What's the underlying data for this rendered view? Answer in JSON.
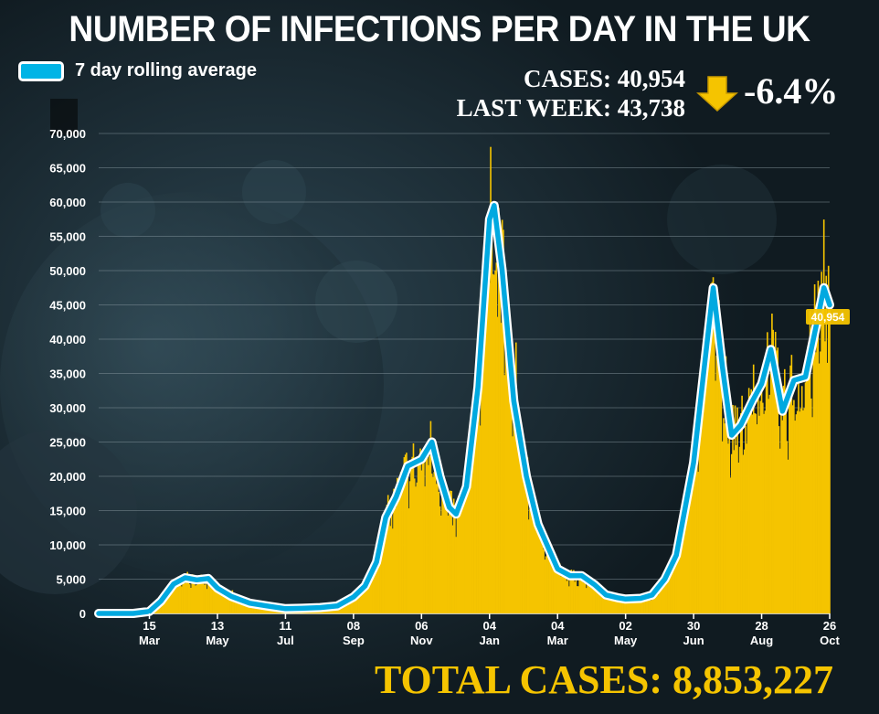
{
  "title": "NUMBER OF INFECTIONS PER DAY IN THE UK",
  "legend": {
    "label": "7 day rolling average"
  },
  "stats": {
    "cases": "CASES: 40,954",
    "last_week": "LAST WEEK: 43,738",
    "change": "-6.4%",
    "total": "TOTAL CASES: 8,853,227"
  },
  "colors": {
    "background": "#17252d",
    "bars": "#f5c400",
    "rolling_line": "#00a9e0",
    "line_outline": "#ffffff",
    "arrow": "#f5c400",
    "total_text": "#f5c400"
  },
  "icons": {
    "change": "arrow-down-icon"
  },
  "chart_data": {
    "type": "bar",
    "title": "NUMBER OF INFECTIONS PER DAY IN THE UK",
    "ylim": [
      0,
      70000
    ],
    "yticks": [
      0,
      5000,
      10000,
      15000,
      20000,
      25000,
      30000,
      35000,
      40000,
      45000,
      50000,
      55000,
      60000,
      65000,
      70000
    ],
    "ytick_labels": [
      "0",
      "5,000",
      "10,000",
      "15,000",
      "20,000",
      "25,000",
      "30,000",
      "35,000",
      "40,000",
      "45,000",
      "50,000",
      "55,000",
      "60,000",
      "65,000",
      "70,000"
    ],
    "x_start": "2020-01-31",
    "x_end": "2021-10-26",
    "xticks": [
      {
        "date": "2020-03-15",
        "day": "15",
        "month": "Mar"
      },
      {
        "date": "2020-05-13",
        "day": "13",
        "month": "May"
      },
      {
        "date": "2020-07-11",
        "day": "11",
        "month": "Jul"
      },
      {
        "date": "2020-09-08",
        "day": "08",
        "month": "Sep"
      },
      {
        "date": "2020-11-06",
        "day": "06",
        "month": "Nov"
      },
      {
        "date": "2021-01-04",
        "day": "04",
        "month": "Jan"
      },
      {
        "date": "2021-03-04",
        "day": "04",
        "month": "Mar"
      },
      {
        "date": "2021-05-02",
        "day": "02",
        "month": "May"
      },
      {
        "date": "2021-06-30",
        "day": "30",
        "month": "Jun"
      },
      {
        "date": "2021-08-28",
        "day": "28",
        "month": "Aug"
      },
      {
        "date": "2021-10-26",
        "day": "26",
        "month": "Oct"
      }
    ],
    "grid": true,
    "last_value_label": "40,954",
    "series": [
      {
        "name": "7 day rolling average",
        "style": "line",
        "points": [
          [
            "2020-01-31",
            0
          ],
          [
            "2020-03-01",
            0
          ],
          [
            "2020-03-15",
            300
          ],
          [
            "2020-03-25",
            1800
          ],
          [
            "2020-04-05",
            4300
          ],
          [
            "2020-04-15",
            5200
          ],
          [
            "2020-04-25",
            4900
          ],
          [
            "2020-05-05",
            5100
          ],
          [
            "2020-05-13",
            3700
          ],
          [
            "2020-05-25",
            2500
          ],
          [
            "2020-06-10",
            1500
          ],
          [
            "2020-06-25",
            1100
          ],
          [
            "2020-07-11",
            700
          ],
          [
            "2020-07-25",
            750
          ],
          [
            "2020-08-10",
            850
          ],
          [
            "2020-08-25",
            1100
          ],
          [
            "2020-09-08",
            2400
          ],
          [
            "2020-09-18",
            4000
          ],
          [
            "2020-09-28",
            7500
          ],
          [
            "2020-10-06",
            14000
          ],
          [
            "2020-10-15",
            17000
          ],
          [
            "2020-10-25",
            21500
          ],
          [
            "2020-11-06",
            22500
          ],
          [
            "2020-11-15",
            25000
          ],
          [
            "2020-11-22",
            20000
          ],
          [
            "2020-11-30",
            15500
          ],
          [
            "2020-12-06",
            14500
          ],
          [
            "2020-12-15",
            18500
          ],
          [
            "2020-12-25",
            33000
          ],
          [
            "2021-01-04",
            57500
          ],
          [
            "2021-01-08",
            59500
          ],
          [
            "2021-01-15",
            50000
          ],
          [
            "2021-01-25",
            31000
          ],
          [
            "2021-02-05",
            20000
          ],
          [
            "2021-02-15",
            13000
          ],
          [
            "2021-03-04",
            6500
          ],
          [
            "2021-03-15",
            5500
          ],
          [
            "2021-03-25",
            5500
          ],
          [
            "2021-04-05",
            4200
          ],
          [
            "2021-04-15",
            2700
          ],
          [
            "2021-04-25",
            2300
          ],
          [
            "2021-05-02",
            2100
          ],
          [
            "2021-05-15",
            2200
          ],
          [
            "2021-05-25",
            2700
          ],
          [
            "2021-06-05",
            5000
          ],
          [
            "2021-06-15",
            8500
          ],
          [
            "2021-06-30",
            22000
          ],
          [
            "2021-07-10",
            37000
          ],
          [
            "2021-07-17",
            47500
          ],
          [
            "2021-07-25",
            36000
          ],
          [
            "2021-08-02",
            26000
          ],
          [
            "2021-08-10",
            27500
          ],
          [
            "2021-08-20",
            31000
          ],
          [
            "2021-08-28",
            33500
          ],
          [
            "2021-09-05",
            38500
          ],
          [
            "2021-09-15",
            29500
          ],
          [
            "2021-09-25",
            34000
          ],
          [
            "2021-10-05",
            34500
          ],
          [
            "2021-10-15",
            42500
          ],
          [
            "2021-10-21",
            47500
          ],
          [
            "2021-10-26",
            45000
          ]
        ]
      }
    ]
  }
}
